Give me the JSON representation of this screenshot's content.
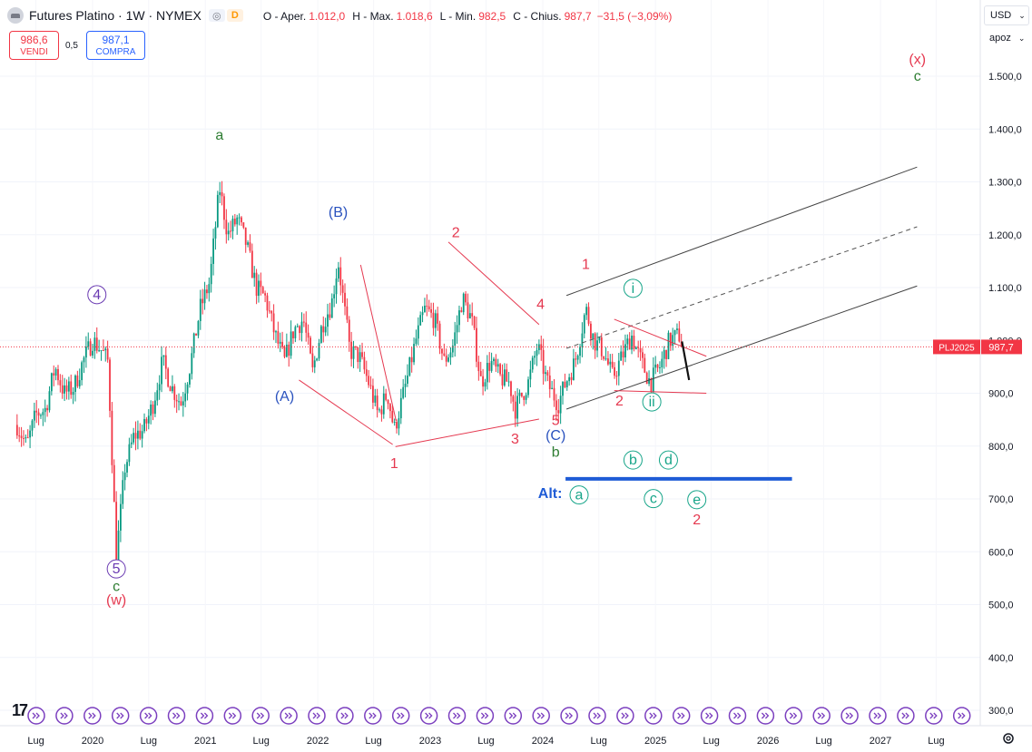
{
  "header": {
    "title": "Futures Platino · 1W · NYMEX",
    "eye_icon": "eye-icon",
    "d_badge": "D",
    "ohlc": [
      {
        "k": "O - Aper.",
        "v": "1.012,0"
      },
      {
        "k": "H - Max.",
        "v": "1.018,6"
      },
      {
        "k": "L - Min.",
        "v": "982,5"
      },
      {
        "k": "C - Chius.",
        "v": "987,7"
      }
    ],
    "change": "−31,5 (−3,09%)"
  },
  "trade": {
    "sell_price": "986,6",
    "sell_label": "VENDI",
    "spread": "0,5",
    "buy_price": "987,1",
    "buy_label": "COMPRA"
  },
  "currency": "USD",
  "scale_mode": "apoz",
  "last_price_label": {
    "symbol": "PLJ2025",
    "price": "987,7",
    "value": 987.7
  },
  "colors": {
    "up": "#089981",
    "down": "#f23645",
    "wave_red": "#e53950",
    "wave_blue": "#2a52be",
    "wave_green": "#2e7d32",
    "wave_purple": "#6a3ab2",
    "wave_teal": "#17a589",
    "alt_blue": "#1e5bd6"
  },
  "chart_data": {
    "type": "candlestick",
    "timeframe": "1W",
    "y_ticks": [
      300,
      400,
      500,
      600,
      700,
      800,
      900,
      1000,
      1100,
      1200,
      1300,
      1400,
      1500
    ],
    "y_tick_labels": [
      "300,0",
      "400,0",
      "500,0",
      "600,0",
      "700,0",
      "800,0",
      "900,0",
      "1.000,0",
      "1.100,0",
      "1.200,0",
      "1.300,0",
      "1.400,0",
      "1.500,0"
    ],
    "ylim": [
      270,
      1580
    ],
    "x_range": [
      "2019-05-01",
      "2027-12-31"
    ],
    "x_ticks": [
      {
        "label": "Lug",
        "date": "2019-07-01"
      },
      {
        "label": "2020",
        "date": "2020-01-01"
      },
      {
        "label": "Lug",
        "date": "2020-07-01"
      },
      {
        "label": "2021",
        "date": "2021-01-01"
      },
      {
        "label": "Lug",
        "date": "2021-07-01"
      },
      {
        "label": "2022",
        "date": "2022-01-01"
      },
      {
        "label": "Lug",
        "date": "2022-07-01"
      },
      {
        "label": "2023",
        "date": "2023-01-01"
      },
      {
        "label": "Lug",
        "date": "2023-07-01"
      },
      {
        "label": "2024",
        "date": "2024-01-01"
      },
      {
        "label": "Lug",
        "date": "2024-07-01"
      },
      {
        "label": "2025",
        "date": "2025-01-01"
      },
      {
        "label": "Lug",
        "date": "2025-07-01"
      },
      {
        "label": "2026",
        "date": "2026-01-01"
      },
      {
        "label": "Lug",
        "date": "2026-07-01"
      },
      {
        "label": "2027",
        "date": "2027-01-01"
      },
      {
        "label": "Lug",
        "date": "2027-07-01"
      }
    ],
    "price_path": [
      [
        "2019-05-01",
        840
      ],
      [
        "2019-06-01",
        800
      ],
      [
        "2019-07-01",
        860
      ],
      [
        "2019-08-01",
        870
      ],
      [
        "2019-09-01",
        950
      ],
      [
        "2019-10-01",
        900
      ],
      [
        "2019-11-01",
        910
      ],
      [
        "2019-12-01",
        960
      ],
      [
        "2020-01-01",
        1000
      ],
      [
        "2020-02-01",
        980
      ],
      [
        "2020-02-20",
        960
      ],
      [
        "2020-03-18",
        590
      ],
      [
        "2020-04-15",
        760
      ],
      [
        "2020-05-15",
        820
      ],
      [
        "2020-06-15",
        830
      ],
      [
        "2020-07-15",
        880
      ],
      [
        "2020-08-15",
        960
      ],
      [
        "2020-09-15",
        910
      ],
      [
        "2020-10-15",
        880
      ],
      [
        "2020-11-15",
        960
      ],
      [
        "2020-12-15",
        1060
      ],
      [
        "2021-01-15",
        1110
      ],
      [
        "2021-02-16",
        1290
      ],
      [
        "2021-03-15",
        1200
      ],
      [
        "2021-04-15",
        1230
      ],
      [
        "2021-05-15",
        1180
      ],
      [
        "2021-06-15",
        1100
      ],
      [
        "2021-07-15",
        1080
      ],
      [
        "2021-08-15",
        1010
      ],
      [
        "2021-09-15",
        960
      ],
      [
        "2021-10-15",
        1020
      ],
      [
        "2021-11-15",
        1040
      ],
      [
        "2021-12-15",
        940
      ],
      [
        "2022-01-15",
        1030
      ],
      [
        "2022-02-15",
        1070
      ],
      [
        "2022-03-08",
        1150
      ],
      [
        "2022-04-15",
        980
      ],
      [
        "2022-05-15",
        970
      ],
      [
        "2022-06-15",
        920
      ],
      [
        "2022-07-15",
        860
      ],
      [
        "2022-08-15",
        900
      ],
      [
        "2022-09-06",
        830
      ],
      [
        "2022-10-15",
        920
      ],
      [
        "2022-11-15",
        1000
      ],
      [
        "2022-12-15",
        1060
      ],
      [
        "2023-01-15",
        1040
      ],
      [
        "2023-02-15",
        960
      ],
      [
        "2023-03-15",
        990
      ],
      [
        "2023-04-15",
        1080
      ],
      [
        "2023-05-15",
        1040
      ],
      [
        "2023-06-15",
        920
      ],
      [
        "2023-07-15",
        960
      ],
      [
        "2023-08-15",
        930
      ],
      [
        "2023-09-15",
        920
      ],
      [
        "2023-10-03",
        870
      ],
      [
        "2023-11-15",
        920
      ],
      [
        "2023-12-15",
        990
      ],
      [
        "2024-01-15",
        920
      ],
      [
        "2024-02-20",
        880
      ],
      [
        "2024-03-15",
        920
      ],
      [
        "2024-04-15",
        960
      ],
      [
        "2024-05-20",
        1060
      ],
      [
        "2024-06-15",
        1000
      ],
      [
        "2024-07-15",
        980
      ],
      [
        "2024-08-15",
        930
      ],
      [
        "2024-09-15",
        970
      ],
      [
        "2024-10-15",
        1010
      ],
      [
        "2024-11-15",
        960
      ],
      [
        "2024-12-15",
        920
      ],
      [
        "2025-01-15",
        950
      ],
      [
        "2025-02-15",
        1000
      ],
      [
        "2025-03-20",
        1010
      ],
      [
        "2025-03-31",
        987.7
      ]
    ],
    "wave_labels": [
      {
        "text": "4",
        "circle": true,
        "color": "wave_purple",
        "date": "2020-01-15",
        "price": 1078
      },
      {
        "text": "5",
        "circle": true,
        "color": "wave_purple",
        "date": "2020-03-18",
        "price": 559
      },
      {
        "text": "c",
        "color": "wave_green",
        "date": "2020-03-18",
        "price": 526
      },
      {
        "text": "(w)",
        "color": "wave_red",
        "date": "2020-03-18",
        "price": 500
      },
      {
        "text": "a",
        "color": "wave_green",
        "date": "2021-02-16",
        "price": 1380
      },
      {
        "text": "(B)",
        "color": "wave_blue",
        "date": "2022-03-08",
        "price": 1234
      },
      {
        "text": "(A)",
        "color": "wave_blue",
        "date": "2021-09-15",
        "price": 885
      },
      {
        "text": "2",
        "color": "wave_red",
        "date": "2023-03-25",
        "price": 1195
      },
      {
        "text": "1",
        "color": "wave_red",
        "date": "2022-09-06",
        "price": 758
      },
      {
        "text": "3",
        "color": "wave_red",
        "date": "2023-10-03",
        "price": 805
      },
      {
        "text": "4",
        "color": "wave_red",
        "date": "2023-12-25",
        "price": 1060
      },
      {
        "text": "5",
        "color": "wave_red",
        "date": "2024-02-12",
        "price": 840
      },
      {
        "text": "(C)",
        "color": "wave_blue",
        "date": "2024-02-12",
        "price": 812
      },
      {
        "text": "b",
        "color": "wave_green",
        "date": "2024-02-12",
        "price": 780
      },
      {
        "text": "1",
        "color": "wave_red",
        "date": "2024-05-20",
        "price": 1135
      },
      {
        "text": "2",
        "color": "wave_red",
        "date": "2024-09-06",
        "price": 877
      },
      {
        "text": "i",
        "circle": true,
        "color": "wave_teal",
        "date": "2024-10-20",
        "price": 1090
      },
      {
        "text": "ii",
        "circle": true,
        "color": "wave_teal",
        "date": "2024-12-20",
        "price": 875
      },
      {
        "text": "(x)",
        "color": "wave_red",
        "date": "2027-05-01",
        "price": 1523
      },
      {
        "text": "c",
        "color": "wave_green",
        "date": "2027-05-01",
        "price": 1491
      },
      {
        "text": "b",
        "circle": true,
        "color": "wave_teal",
        "date": "2024-10-20",
        "price": 765
      },
      {
        "text": "d",
        "circle": true,
        "color": "wave_teal",
        "date": "2025-02-12",
        "price": 765
      },
      {
        "text": "a",
        "circle": true,
        "color": "wave_teal",
        "date": "2024-04-28",
        "price": 699
      },
      {
        "text": "c",
        "circle": true,
        "color": "wave_teal",
        "date": "2024-12-25",
        "price": 692
      },
      {
        "text": "e",
        "circle": true,
        "color": "wave_teal",
        "date": "2025-05-15",
        "price": 690
      },
      {
        "text": "2",
        "color": "wave_red",
        "date": "2025-05-15",
        "price": 652
      }
    ],
    "alt_label": {
      "text": "Alt:",
      "color": "alt_blue",
      "date": "2024-01-25",
      "price": 702
    },
    "lines": [
      {
        "from": [
          "2024-03-18",
          1085
        ],
        "to": [
          "2027-04-30",
          1328
        ],
        "color": "#444",
        "dash": false
      },
      {
        "from": [
          "2024-03-18",
          985
        ],
        "to": [
          "2027-04-30",
          1215
        ],
        "color": "#555",
        "dash": true
      },
      {
        "from": [
          "2024-03-18",
          870
        ],
        "to": [
          "2027-04-30",
          1103
        ],
        "color": "#444",
        "dash": false
      },
      {
        "from": [
          "2022-05-20",
          1143
        ],
        "to": [
          "2022-09-12",
          848
        ],
        "color": "#e53950",
        "dash": false
      },
      {
        "from": [
          "2021-11-01",
          925
        ],
        "to": [
          "2022-09-01",
          803
        ],
        "color": "#e53950",
        "dash": false
      },
      {
        "from": [
          "2022-09-10",
          799
        ],
        "to": [
          "2023-12-20",
          851
        ],
        "color": "#e53950",
        "dash": false
      },
      {
        "from": [
          "2023-03-01",
          1186
        ],
        "to": [
          "2023-12-20",
          1030
        ],
        "color": "#e53950",
        "dash": false
      },
      {
        "from": [
          "2024-08-20",
          1040
        ],
        "to": [
          "2025-06-15",
          970
        ],
        "color": "#e53950",
        "dash": false
      },
      {
        "from": [
          "2024-08-20",
          905
        ],
        "to": [
          "2025-06-15",
          900
        ],
        "color": "#e53950",
        "dash": false
      },
      {
        "from": [
          "2025-03-28",
          998
        ],
        "to": [
          "2025-04-20",
          925
        ],
        "color": "#111",
        "dash": false,
        "width": 2.2
      },
      {
        "from": [
          "2024-03-15",
          738
        ],
        "to": [
          "2026-03-20",
          738
        ],
        "color": "#1e5bd6",
        "dash": false,
        "width": 4
      }
    ],
    "current_price_line": 987.7
  }
}
